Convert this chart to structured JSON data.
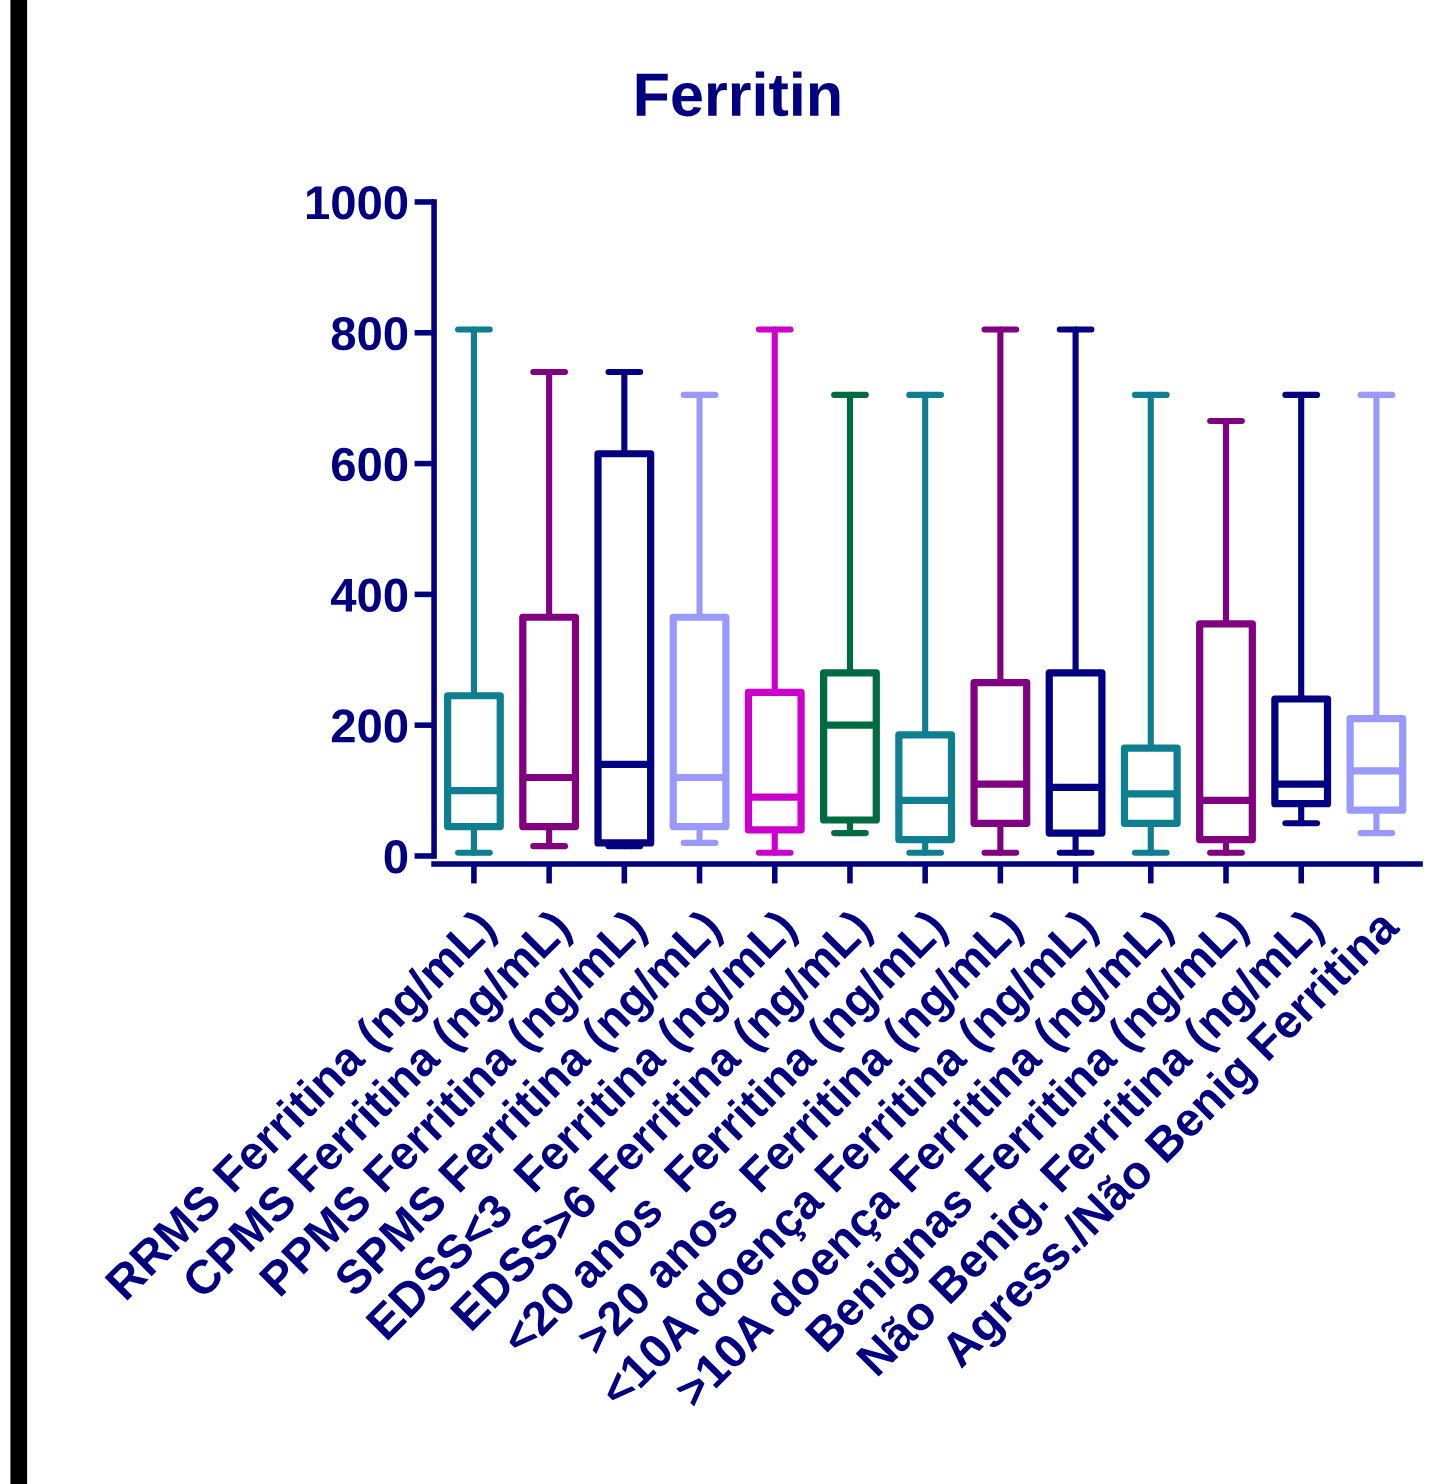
{
  "chart_data": {
    "type": "box",
    "title": "Ferritin",
    "categories": [
      "RRMS Ferritina (ng/mL)",
      "CPMS Ferritina (ng/mL)",
      "PPMS Ferritina (ng/mL)",
      "SPMS Ferritina (ng/mL)",
      "EDSS<3  Ferritina (ng/mL)",
      "EDSS>6 Ferritina (ng/mL)",
      "<20 anos  Ferritina (ng/mL)",
      ">20 anos  Ferritina (ng/mL)",
      "<10A doença Ferritina (ng/mL)",
      ">10A doença Ferritina (ng/mL)",
      "Benignas Ferritina (ng/mL)",
      "Não Benig. Ferritina (ng/mL)",
      "Agress./Não Benig Ferritina"
    ],
    "boxes": [
      {
        "low": 5,
        "q1": 45,
        "median": 100,
        "q3": 245,
        "high": 805
      },
      {
        "low": 15,
        "q1": 45,
        "median": 120,
        "q3": 365,
        "high": 740
      },
      {
        "low": 15,
        "q1": 20,
        "median": 140,
        "q3": 615,
        "high": 740
      },
      {
        "low": 20,
        "q1": 45,
        "median": 120,
        "q3": 365,
        "high": 705
      },
      {
        "low": 5,
        "q1": 40,
        "median": 90,
        "q3": 250,
        "high": 805
      },
      {
        "low": 35,
        "q1": 55,
        "median": 200,
        "q3": 280,
        "high": 705
      },
      {
        "low": 5,
        "q1": 25,
        "median": 85,
        "q3": 185,
        "high": 705
      },
      {
        "low": 5,
        "q1": 50,
        "median": 110,
        "q3": 265,
        "high": 805
      },
      {
        "low": 5,
        "q1": 35,
        "median": 105,
        "q3": 280,
        "high": 805
      },
      {
        "low": 5,
        "q1": 50,
        "median": 95,
        "q3": 165,
        "high": 705
      },
      {
        "low": 5,
        "q1": 25,
        "median": 85,
        "q3": 355,
        "high": 665
      },
      {
        "low": 50,
        "q1": 80,
        "median": 110,
        "q3": 240,
        "high": 705
      },
      {
        "low": 35,
        "q1": 70,
        "median": 130,
        "q3": 210,
        "high": 705
      }
    ],
    "colors": [
      "#0e7f91",
      "#800080",
      "#000080",
      "#9999ff",
      "#cc00cc",
      "#006a40",
      "#0e7f91",
      "#800080",
      "#000080",
      "#0e7f91",
      "#800080",
      "#000080",
      "#9999ff"
    ],
    "ylim": [
      0,
      1000
    ],
    "yticks": [
      0,
      200,
      400,
      600,
      800,
      1000
    ],
    "grid": false
  }
}
